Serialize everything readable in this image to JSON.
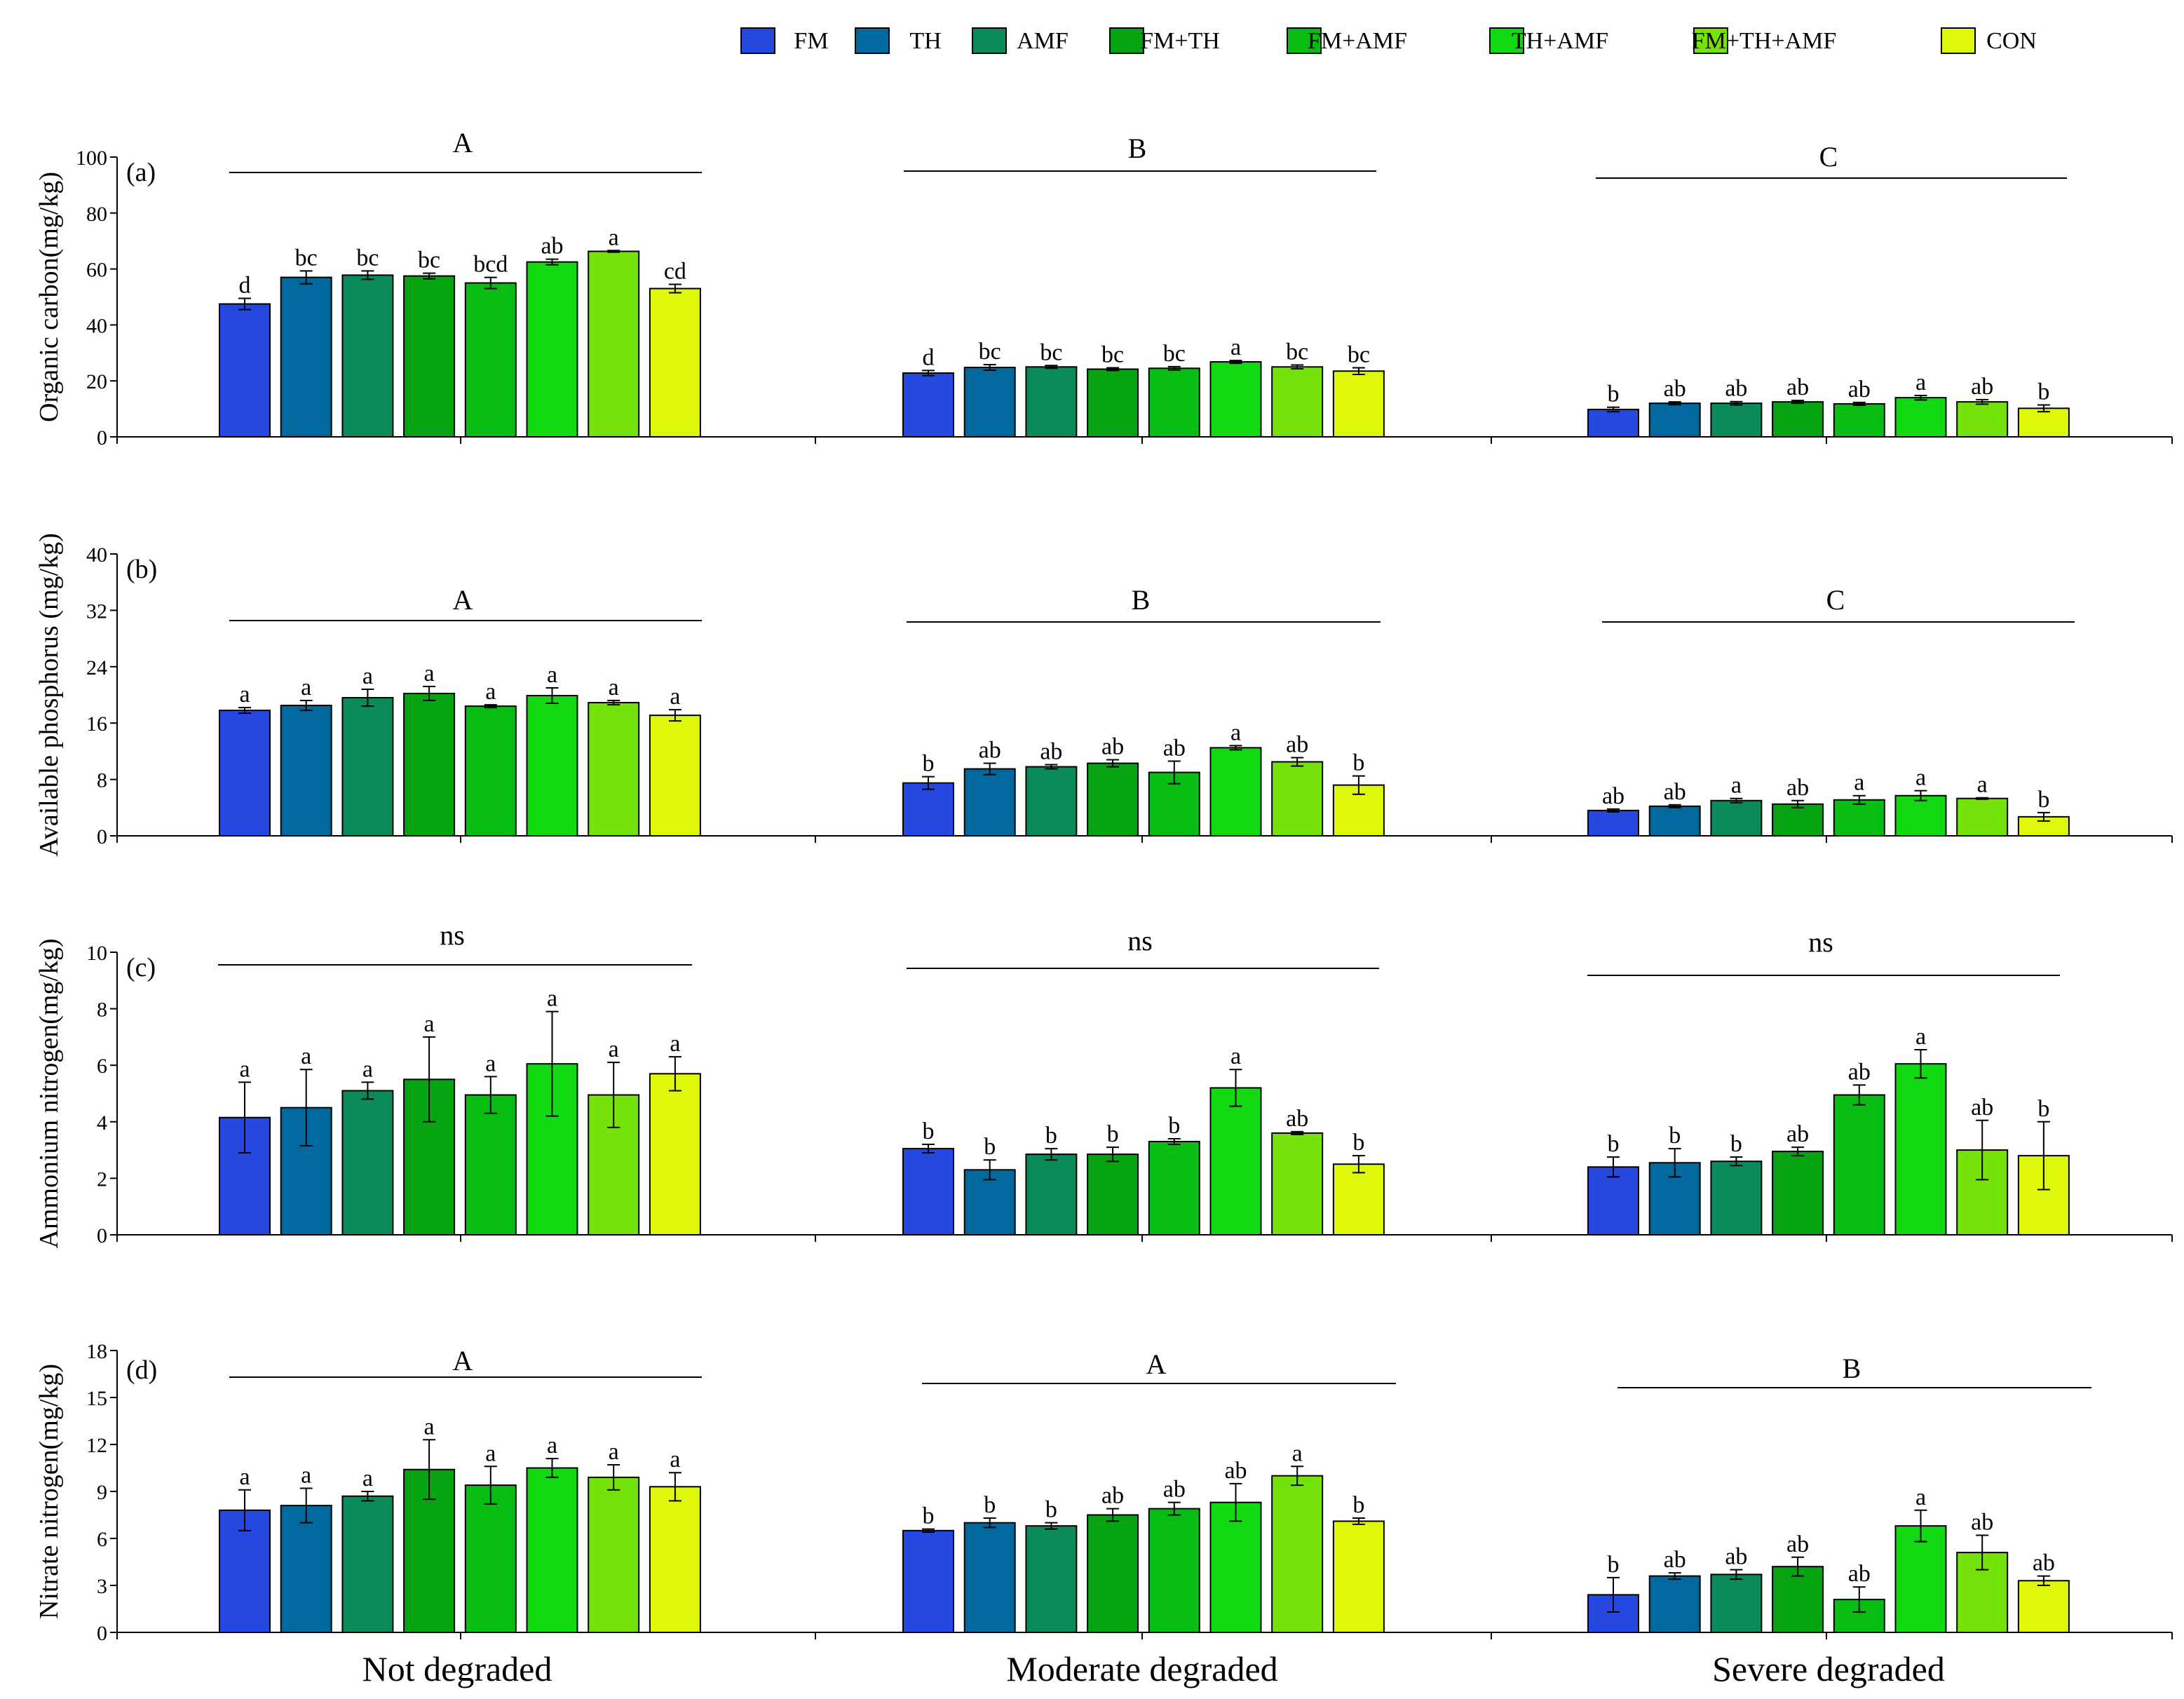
{
  "legend": [
    {
      "label": "FM",
      "color": "#2448e0"
    },
    {
      "label": "TH",
      "color": "#02699f"
    },
    {
      "label": "AMF",
      "color": "#0b8b5a"
    },
    {
      "label": "FM+TH",
      "color": "#06a312"
    },
    {
      "label": "FM+AMF",
      "color": "#08bd12"
    },
    {
      "label": "TH+AMF",
      "color": "#13d913"
    },
    {
      "label": "FM+TH+AMF",
      "color": "#75e30a"
    },
    {
      "label": "CON",
      "color": "#dff80a"
    }
  ],
  "groups": [
    "Not degraded",
    "Moderate degraded",
    "Severe degraded"
  ],
  "chart_data": [
    {
      "type": "bar",
      "panel": "(a)",
      "ylabel": "Organic carbon(mg/kg)",
      "ylim": [
        0,
        100
      ],
      "yticks": [
        0,
        20,
        40,
        60,
        80,
        100
      ],
      "categories": [
        "Not degraded",
        "Moderate degraded",
        "Severe degraded"
      ],
      "group_letters": [
        "A",
        "B",
        "C"
      ],
      "series": [
        {
          "name": "FM",
          "values": [
            47.5,
            22.8,
            9.8
          ],
          "errors": [
            2.0,
            0.9,
            0.8
          ],
          "letters": [
            "d",
            "d",
            "b"
          ]
        },
        {
          "name": "TH",
          "values": [
            57.0,
            24.8,
            12.0
          ],
          "errors": [
            2.3,
            1.0,
            0.5
          ],
          "letters": [
            "bc",
            "bc",
            "ab"
          ]
        },
        {
          "name": "AMF",
          "values": [
            57.8,
            25.0,
            12.0
          ],
          "errors": [
            1.5,
            0.5,
            0.6
          ],
          "letters": [
            "bc",
            "bc",
            "ab"
          ]
        },
        {
          "name": "FM+TH",
          "values": [
            57.5,
            24.2,
            12.5
          ],
          "errors": [
            1.0,
            0.5,
            0.5
          ],
          "letters": [
            "bc",
            "bc",
            "ab"
          ]
        },
        {
          "name": "FM+AMF",
          "values": [
            55.0,
            24.5,
            11.8
          ],
          "errors": [
            2.0,
            0.6,
            0.5
          ],
          "letters": [
            "bcd",
            "bc",
            "ab"
          ]
        },
        {
          "name": "TH+AMF",
          "values": [
            62.5,
            26.8,
            14.0
          ],
          "errors": [
            1.0,
            0.5,
            0.8
          ],
          "letters": [
            "ab",
            "a",
            "a"
          ]
        },
        {
          "name": "FM+TH+AMF",
          "values": [
            66.3,
            25.0,
            12.5
          ],
          "errors": [
            0.3,
            0.7,
            0.8
          ],
          "letters": [
            "a",
            "bc",
            "ab"
          ]
        },
        {
          "name": "CON",
          "values": [
            53.0,
            23.5,
            10.2
          ],
          "errors": [
            1.5,
            1.2,
            1.2
          ],
          "letters": [
            "cd",
            "bc",
            "b"
          ]
        }
      ]
    },
    {
      "type": "bar",
      "panel": "(b)",
      "ylabel": "Available phosphorus (mg/kg)",
      "ylim": [
        0,
        40
      ],
      "yticks": [
        0,
        8,
        16,
        24,
        32,
        40
      ],
      "categories": [
        "Not degraded",
        "Moderate degraded",
        "Severe degraded"
      ],
      "group_letters": [
        "A",
        "B",
        "C"
      ],
      "series": [
        {
          "name": "FM",
          "values": [
            17.8,
            7.5,
            3.6
          ],
          "errors": [
            0.4,
            0.9,
            0.2
          ],
          "letters": [
            "a",
            "b",
            "ab"
          ]
        },
        {
          "name": "TH",
          "values": [
            18.5,
            9.5,
            4.2
          ],
          "errors": [
            0.7,
            0.8,
            0.2
          ],
          "letters": [
            "a",
            "ab",
            "ab"
          ]
        },
        {
          "name": "AMF",
          "values": [
            19.6,
            9.8,
            5.0
          ],
          "errors": [
            1.2,
            0.3,
            0.3
          ],
          "letters": [
            "a",
            "ab",
            "a"
          ]
        },
        {
          "name": "FM+TH",
          "values": [
            20.2,
            10.3,
            4.5
          ],
          "errors": [
            1.0,
            0.5,
            0.5
          ],
          "letters": [
            "a",
            "ab",
            "ab"
          ]
        },
        {
          "name": "FM+AMF",
          "values": [
            18.4,
            9.0,
            5.1
          ],
          "errors": [
            0.2,
            1.6,
            0.6
          ],
          "letters": [
            "a",
            "ab",
            "a"
          ]
        },
        {
          "name": "TH+AMF",
          "values": [
            19.9,
            12.5,
            5.7
          ],
          "errors": [
            1.1,
            0.3,
            0.7
          ],
          "letters": [
            "a",
            "a",
            "a"
          ]
        },
        {
          "name": "FM+TH+AMF",
          "values": [
            18.9,
            10.5,
            5.3
          ],
          "errors": [
            0.3,
            0.6,
            0.1
          ],
          "letters": [
            "a",
            "ab",
            "a"
          ]
        },
        {
          "name": "CON",
          "values": [
            17.1,
            7.2,
            2.7
          ],
          "errors": [
            0.8,
            1.3,
            0.6
          ],
          "letters": [
            "a",
            "b",
            "b"
          ]
        }
      ]
    },
    {
      "type": "bar",
      "panel": "(c)",
      "ylabel": "Ammonium nitrogen(mg/kg)",
      "ylim": [
        0,
        10
      ],
      "yticks": [
        0,
        2,
        4,
        6,
        8,
        10
      ],
      "categories": [
        "Not degraded",
        "Moderate degraded",
        "Severe degraded"
      ],
      "group_letters": [
        "ns",
        "ns",
        "ns"
      ],
      "series": [
        {
          "name": "FM",
          "values": [
            4.15,
            3.05,
            2.4
          ],
          "errors": [
            1.25,
            0.15,
            0.35
          ],
          "letters": [
            "a",
            "b",
            "b"
          ]
        },
        {
          "name": "TH",
          "values": [
            4.5,
            2.3,
            2.55
          ],
          "errors": [
            1.35,
            0.35,
            0.5
          ],
          "letters": [
            "a",
            "b",
            "b"
          ]
        },
        {
          "name": "AMF",
          "values": [
            5.1,
            2.85,
            2.6
          ],
          "errors": [
            0.3,
            0.2,
            0.15
          ],
          "letters": [
            "a",
            "b",
            "b"
          ]
        },
        {
          "name": "FM+TH",
          "values": [
            5.5,
            2.85,
            2.95
          ],
          "errors": [
            1.5,
            0.25,
            0.15
          ],
          "letters": [
            "a",
            "b",
            "ab"
          ]
        },
        {
          "name": "FM+AMF",
          "values": [
            4.95,
            3.3,
            4.95
          ],
          "errors": [
            0.65,
            0.1,
            0.35
          ],
          "letters": [
            "a",
            "b",
            "ab"
          ]
        },
        {
          "name": "TH+AMF",
          "values": [
            6.05,
            5.2,
            6.05
          ],
          "errors": [
            1.85,
            0.65,
            0.5
          ],
          "letters": [
            "a",
            "a",
            "a"
          ]
        },
        {
          "name": "FM+TH+AMF",
          "values": [
            4.95,
            3.6,
            3.0
          ],
          "errors": [
            1.15,
            0.05,
            1.05
          ],
          "letters": [
            "a",
            "ab",
            "ab"
          ]
        },
        {
          "name": "CON",
          "values": [
            5.7,
            2.5,
            2.8
          ],
          "errors": [
            0.6,
            0.3,
            1.2
          ],
          "letters": [
            "a",
            "b",
            "b"
          ]
        }
      ]
    },
    {
      "type": "bar",
      "panel": "(d)",
      "ylabel": "Nitrate nitrogen(mg/kg)",
      "ylim": [
        0,
        18
      ],
      "yticks": [
        0,
        3,
        6,
        9,
        12,
        15,
        18
      ],
      "categories": [
        "Not degraded",
        "Moderate degraded",
        "Severe degraded"
      ],
      "group_letters": [
        "A",
        "A",
        "B"
      ],
      "series": [
        {
          "name": "FM",
          "values": [
            7.8,
            6.5,
            2.4
          ],
          "errors": [
            1.3,
            0.1,
            1.1
          ],
          "letters": [
            "a",
            "b",
            "b"
          ]
        },
        {
          "name": "TH",
          "values": [
            8.1,
            7.0,
            3.6
          ],
          "errors": [
            1.1,
            0.3,
            0.2
          ],
          "letters": [
            "a",
            "b",
            "ab"
          ]
        },
        {
          "name": "AMF",
          "values": [
            8.7,
            6.8,
            3.7
          ],
          "errors": [
            0.3,
            0.2,
            0.3
          ],
          "letters": [
            "a",
            "b",
            "ab"
          ]
        },
        {
          "name": "FM+TH",
          "values": [
            10.4,
            7.5,
            4.2
          ],
          "errors": [
            1.9,
            0.4,
            0.6
          ],
          "letters": [
            "a",
            "ab",
            "ab"
          ]
        },
        {
          "name": "FM+AMF",
          "values": [
            9.4,
            7.9,
            2.1
          ],
          "errors": [
            1.2,
            0.4,
            0.8
          ],
          "letters": [
            "a",
            "ab",
            "ab"
          ]
        },
        {
          "name": "TH+AMF",
          "values": [
            10.5,
            8.3,
            6.8
          ],
          "errors": [
            0.6,
            1.2,
            1.0
          ],
          "letters": [
            "a",
            "ab",
            "a"
          ]
        },
        {
          "name": "FM+TH+AMF",
          "values": [
            9.9,
            10.0,
            5.1
          ],
          "errors": [
            0.8,
            0.6,
            1.1
          ],
          "letters": [
            "a",
            "a",
            "ab"
          ]
        },
        {
          "name": "CON",
          "values": [
            9.3,
            7.1,
            3.3
          ],
          "errors": [
            0.9,
            0.2,
            0.3
          ],
          "letters": [
            "a",
            "b",
            "ab"
          ]
        }
      ]
    }
  ]
}
